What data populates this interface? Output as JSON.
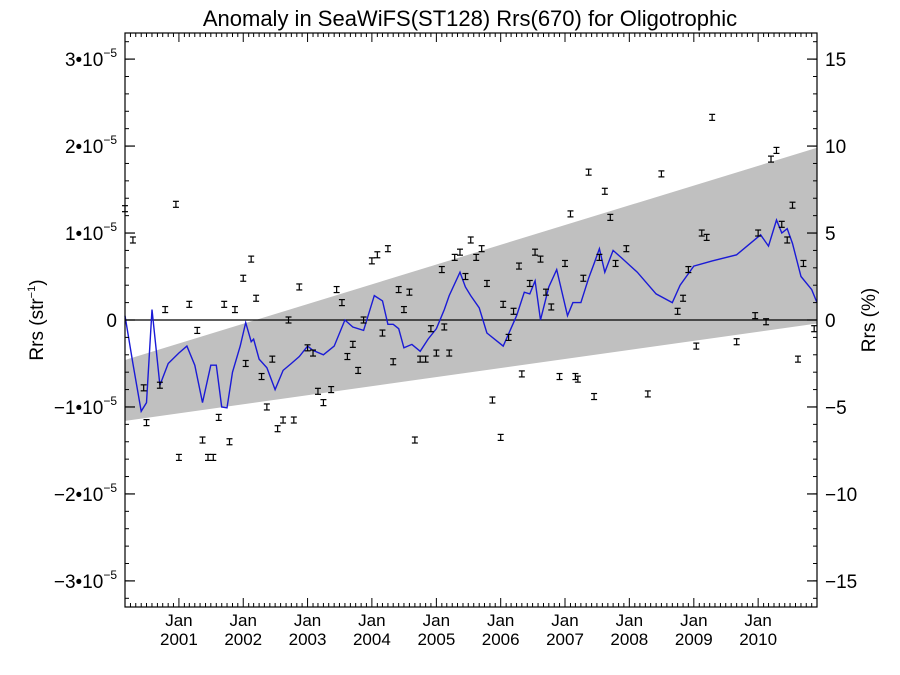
{
  "chart_data": {
    "type": "scatter",
    "title": "Anomaly in SeaWiFS(ST128) Rrs(670) for Oligotrophic",
    "ylabel_left": {
      "text": "Rrs (str",
      "sup": "−1",
      "close": ")"
    },
    "ylabel_right": "Rrs (%)",
    "x_range": [
      "2000-03-01",
      "2010-12-01"
    ],
    "y_range_left": [
      -3.3e-05,
      3.3e-05
    ],
    "y_range_right": [
      -16.5,
      16.5
    ],
    "y_ticks_left": [
      {
        "value": -3e-05,
        "mant": "−3",
        "exp": "−5"
      },
      {
        "value": -2e-05,
        "mant": "−2",
        "exp": "−5"
      },
      {
        "value": -1e-05,
        "mant": "−1",
        "exp": "−5"
      },
      {
        "value": 0,
        "mant": "0",
        "exp": ""
      },
      {
        "value": 1e-05,
        "mant": "1",
        "exp": "−5"
      },
      {
        "value": 2e-05,
        "mant": "2",
        "exp": "−5"
      },
      {
        "value": 3e-05,
        "mant": "3",
        "exp": "−5"
      }
    ],
    "y_ticks_right": [
      {
        "value": -15,
        "label": "−15"
      },
      {
        "value": -10,
        "label": "−10"
      },
      {
        "value": -5,
        "label": "−5"
      },
      {
        "value": 0,
        "label": "0"
      },
      {
        "value": 5,
        "label": "5"
      },
      {
        "value": 10,
        "label": "10"
      },
      {
        "value": 15,
        "label": "15"
      }
    ],
    "x_ticks": [
      {
        "date": "2001-01-01",
        "month": "Jan",
        "year": "2001"
      },
      {
        "date": "2002-01-01",
        "month": "Jan",
        "year": "2002"
      },
      {
        "date": "2003-01-01",
        "month": "Jan",
        "year": "2003"
      },
      {
        "date": "2004-01-01",
        "month": "Jan",
        "year": "2004"
      },
      {
        "date": "2005-01-01",
        "month": "Jan",
        "year": "2005"
      },
      {
        "date": "2006-01-01",
        "month": "Jan",
        "year": "2006"
      },
      {
        "date": "2007-01-01",
        "month": "Jan",
        "year": "2007"
      },
      {
        "date": "2008-01-01",
        "month": "Jan",
        "year": "2008"
      },
      {
        "date": "2009-01-01",
        "month": "Jan",
        "year": "2009"
      },
      {
        "date": "2010-01-01",
        "month": "Jan",
        "year": "2010"
      }
    ],
    "band": {
      "start": "2000-03-01",
      "end": "2010-12-01",
      "upper_start": -4.6e-06,
      "upper_end": 1.98e-05,
      "lower_start": -1.16e-05,
      "lower_end": -4e-07
    },
    "zero_line": 0,
    "line_series": [
      [
        "2000-03-01",
        5e-07
      ],
      [
        "2000-04-15",
        -5e-06
      ],
      [
        "2000-06-01",
        -1.05e-05
      ],
      [
        "2000-07-01",
        -9.5e-06
      ],
      [
        "2000-08-01",
        1.2e-06
      ],
      [
        "2000-09-15",
        -7.5e-06
      ],
      [
        "2000-11-01",
        -5e-06
      ],
      [
        "2001-01-01",
        -3.8e-06
      ],
      [
        "2001-02-15",
        -3e-06
      ],
      [
        "2001-04-01",
        -5.2e-06
      ],
      [
        "2001-05-15",
        -9.5e-06
      ],
      [
        "2001-07-01",
        -5.2e-06
      ],
      [
        "2001-08-01",
        -5.2e-06
      ],
      [
        "2001-09-01",
        -1e-05
      ],
      [
        "2001-10-01",
        -1.01e-05
      ],
      [
        "2001-11-01",
        -6e-06
      ],
      [
        "2001-12-15",
        -3e-06
      ],
      [
        "2002-01-15",
        -3e-07
      ],
      [
        "2002-02-15",
        -2.5e-06
      ],
      [
        "2002-03-01",
        -2.2e-06
      ],
      [
        "2002-04-01",
        -4.5e-06
      ],
      [
        "2002-05-15",
        -5.5e-06
      ],
      [
        "2002-07-01",
        -8e-06
      ],
      [
        "2002-08-15",
        -5.8e-06
      ],
      [
        "2002-10-01",
        -5e-06
      ],
      [
        "2002-11-15",
        -4.2e-06
      ],
      [
        "2003-01-01",
        -3e-06
      ],
      [
        "2003-02-01",
        -3.5e-06
      ],
      [
        "2003-04-01",
        -4e-06
      ],
      [
        "2003-06-01",
        -3e-06
      ],
      [
        "2003-08-01",
        0.0
      ],
      [
        "2003-09-15",
        -8e-07
      ],
      [
        "2003-11-15",
        -1.2e-06
      ],
      [
        "2004-01-15",
        2.8e-06
      ],
      [
        "2004-03-01",
        2.2e-06
      ],
      [
        "2004-04-01",
        -5e-07
      ],
      [
        "2004-05-01",
        -5e-07
      ],
      [
        "2004-06-01",
        -1e-06
      ],
      [
        "2004-07-01",
        -3.2e-06
      ],
      [
        "2004-08-15",
        -2.8e-06
      ],
      [
        "2004-10-01",
        -3.6e-06
      ],
      [
        "2004-11-15",
        -2.2e-06
      ],
      [
        "2005-01-01",
        -1e-06
      ],
      [
        "2005-02-15",
        1.2e-06
      ],
      [
        "2005-03-15",
        2.8e-06
      ],
      [
        "2005-05-15",
        5.5e-06
      ],
      [
        "2005-06-15",
        3.8e-06
      ],
      [
        "2005-07-15",
        2.8e-06
      ],
      [
        "2005-09-01",
        1.4e-06
      ],
      [
        "2005-10-15",
        -1.5e-06
      ],
      [
        "2006-01-15",
        -3e-06
      ],
      [
        "2006-04-01",
        5e-07
      ],
      [
        "2006-05-15",
        3.2e-06
      ],
      [
        "2006-06-15",
        3e-06
      ],
      [
        "2006-07-15",
        4.5e-06
      ],
      [
        "2006-08-15",
        0.0
      ],
      [
        "2006-10-01",
        3.8e-06
      ],
      [
        "2006-11-15",
        5.8e-06
      ],
      [
        "2007-01-15",
        5e-07
      ],
      [
        "2007-02-15",
        2e-06
      ],
      [
        "2007-04-01",
        2e-06
      ],
      [
        "2007-05-15",
        4.8e-06
      ],
      [
        "2007-06-15",
        6.5e-06
      ],
      [
        "2007-07-15",
        8.2e-06
      ],
      [
        "2007-08-15",
        5.5e-06
      ],
      [
        "2007-10-01",
        8e-06
      ],
      [
        "2007-11-15",
        7.2e-06
      ],
      [
        "2008-02-15",
        5.5e-06
      ],
      [
        "2008-06-01",
        3e-06
      ],
      [
        "2008-09-01",
        2e-06
      ],
      [
        "2008-10-15",
        4e-06
      ],
      [
        "2009-01-01",
        6.2e-06
      ],
      [
        "2009-04-15",
        6.8e-06
      ],
      [
        "2009-09-01",
        7.5e-06
      ],
      [
        "2010-01-15",
        9.8e-06
      ],
      [
        "2010-03-01",
        8.5e-06
      ],
      [
        "2010-04-15",
        1.15e-05
      ],
      [
        "2010-05-15",
        1e-05
      ],
      [
        "2010-06-15",
        1.05e-05
      ],
      [
        "2010-07-15",
        8.8e-06
      ],
      [
        "2010-09-01",
        5e-06
      ],
      [
        "2010-11-01",
        3.5e-06
      ],
      [
        "2010-12-01",
        2e-06
      ]
    ],
    "points": [
      [
        "2000-03-01",
        1.28e-05
      ],
      [
        "2000-04-15",
        9.2e-06
      ],
      [
        "2000-06-15",
        -7.8e-06
      ],
      [
        "2000-07-01",
        -1.18e-05
      ],
      [
        "2000-09-15",
        -7.5e-06
      ],
      [
        "2000-10-15",
        1.2e-06
      ],
      [
        "2000-12-15",
        1.33e-05
      ],
      [
        "2001-01-01",
        -1.58e-05
      ],
      [
        "2001-03-01",
        1.8e-06
      ],
      [
        "2001-04-15",
        -1.2e-06
      ],
      [
        "2001-05-15",
        -1.38e-05
      ],
      [
        "2001-06-15",
        -1.58e-05
      ],
      [
        "2001-07-15",
        -1.58e-05
      ],
      [
        "2001-08-15",
        -1.12e-05
      ],
      [
        "2001-09-15",
        1.8e-06
      ],
      [
        "2001-10-15",
        -1.4e-05
      ],
      [
        "2001-11-15",
        1.2e-06
      ],
      [
        "2002-01-01",
        4.8e-06
      ],
      [
        "2002-01-15",
        -5e-06
      ],
      [
        "2002-02-15",
        7e-06
      ],
      [
        "2002-03-15",
        2.5e-06
      ],
      [
        "2002-04-15",
        -6.5e-06
      ],
      [
        "2002-05-15",
        -1e-05
      ],
      [
        "2002-06-15",
        -4.5e-06
      ],
      [
        "2002-07-15",
        -1.25e-05
      ],
      [
        "2002-08-15",
        -1.15e-05
      ],
      [
        "2002-09-15",
        0.0
      ],
      [
        "2002-10-15",
        -1.15e-05
      ],
      [
        "2002-11-15",
        3.8e-06
      ],
      [
        "2003-01-01",
        -3.2e-06
      ],
      [
        "2003-02-01",
        -3.8e-06
      ],
      [
        "2003-03-01",
        -8.2e-06
      ],
      [
        "2003-04-01",
        -9.5e-06
      ],
      [
        "2003-05-15",
        -8e-06
      ],
      [
        "2003-06-15",
        3.5e-06
      ],
      [
        "2003-07-15",
        2e-06
      ],
      [
        "2003-08-15",
        -4.2e-06
      ],
      [
        "2003-09-15",
        -2.8e-06
      ],
      [
        "2003-10-15",
        -5.8e-06
      ],
      [
        "2003-11-15",
        0.0
      ],
      [
        "2004-01-01",
        6.8e-06
      ],
      [
        "2004-02-01",
        7.5e-06
      ],
      [
        "2004-03-01",
        -1.5e-06
      ],
      [
        "2004-04-01",
        8.2e-06
      ],
      [
        "2004-05-01",
        -4.8e-06
      ],
      [
        "2004-06-01",
        3.5e-06
      ],
      [
        "2004-07-01",
        1.2e-06
      ],
      [
        "2004-08-01",
        3.2e-06
      ],
      [
        "2004-09-01",
        -1.38e-05
      ],
      [
        "2004-10-01",
        -4.5e-06
      ],
      [
        "2004-11-01",
        -4.5e-06
      ],
      [
        "2004-12-01",
        -1e-06
      ],
      [
        "2005-01-01",
        -3.8e-06
      ],
      [
        "2005-02-01",
        5.8e-06
      ],
      [
        "2005-02-15",
        -8e-07
      ],
      [
        "2005-03-15",
        -3.8e-06
      ],
      [
        "2005-04-15",
        7.2e-06
      ],
      [
        "2005-05-15",
        7.8e-06
      ],
      [
        "2005-06-15",
        5e-06
      ],
      [
        "2005-07-15",
        9.2e-06
      ],
      [
        "2005-08-15",
        7.2e-06
      ],
      [
        "2005-09-15",
        8.2e-06
      ],
      [
        "2005-10-15",
        4.2e-06
      ],
      [
        "2005-11-15",
        -9.2e-06
      ],
      [
        "2006-01-01",
        -1.35e-05
      ],
      [
        "2006-01-15",
        1.8e-06
      ],
      [
        "2006-02-15",
        -2e-06
      ],
      [
        "2006-03-15",
        1e-06
      ],
      [
        "2006-04-15",
        6.2e-06
      ],
      [
        "2006-05-01",
        -6.2e-06
      ],
      [
        "2006-06-15",
        4.2e-06
      ],
      [
        "2006-07-15",
        7.8e-06
      ],
      [
        "2006-08-15",
        7e-06
      ],
      [
        "2006-09-15",
        3.2e-06
      ],
      [
        "2006-10-15",
        1.5e-06
      ],
      [
        "2006-12-01",
        -6.5e-06
      ],
      [
        "2007-01-01",
        6.5e-06
      ],
      [
        "2007-02-01",
        1.22e-05
      ],
      [
        "2007-03-01",
        -6.5e-06
      ],
      [
        "2007-03-15",
        -6.8e-06
      ],
      [
        "2007-04-15",
        4.8e-06
      ],
      [
        "2007-05-15",
        1.7e-05
      ],
      [
        "2007-06-15",
        -8.8e-06
      ],
      [
        "2007-07-15",
        7.2e-06
      ],
      [
        "2007-08-15",
        1.48e-05
      ],
      [
        "2007-09-15",
        1.18e-05
      ],
      [
        "2007-10-15",
        6.5e-06
      ],
      [
        "2007-12-15",
        8.2e-06
      ],
      [
        "2008-04-15",
        -8.5e-06
      ],
      [
        "2008-07-01",
        1.68e-05
      ],
      [
        "2008-10-01",
        1e-06
      ],
      [
        "2008-11-01",
        2.5e-06
      ],
      [
        "2008-12-01",
        5.8e-06
      ],
      [
        "2009-01-15",
        -3e-06
      ],
      [
        "2009-02-15",
        1e-05
      ],
      [
        "2009-03-15",
        9.5e-06
      ],
      [
        "2009-04-15",
        2.33e-05
      ],
      [
        "2009-09-01",
        -2.5e-06
      ],
      [
        "2009-12-15",
        5e-07
      ],
      [
        "2010-01-01",
        1e-05
      ],
      [
        "2010-02-15",
        -2e-07
      ],
      [
        "2010-03-15",
        1.85e-05
      ],
      [
        "2010-04-15",
        1.95e-05
      ],
      [
        "2010-05-15",
        1.1e-05
      ],
      [
        "2010-06-15",
        9.2e-06
      ],
      [
        "2010-07-15",
        1.32e-05
      ],
      [
        "2010-08-15",
        -4.5e-06
      ],
      [
        "2010-09-15",
        6.5e-06
      ],
      [
        "2010-11-15",
        -1e-06
      ]
    ],
    "colors": {
      "line": "#1a1ad6",
      "band": "#c0c0c0",
      "points": "#000000"
    }
  }
}
